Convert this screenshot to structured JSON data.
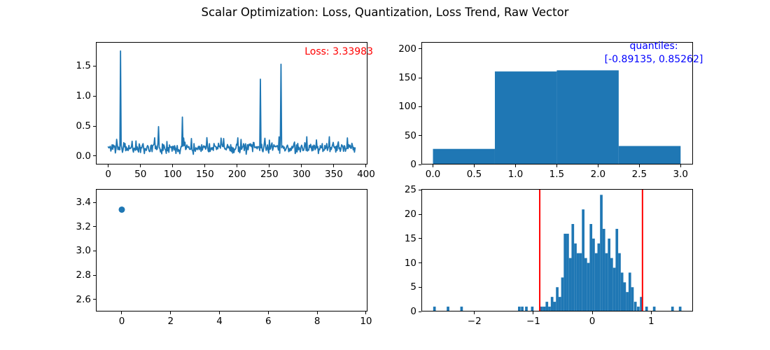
{
  "title": "Scalar Optimization: Loss, Quantization, Loss Trend, Raw Vector",
  "colors": {
    "series": "#1f77b4",
    "annotation_red": "#ff0000",
    "annotation_blue": "#0000ff",
    "vline": "#ff0000",
    "axis": "#000000",
    "background": "#ffffff"
  },
  "chart_data": [
    {
      "id": "loss-curve",
      "type": "line",
      "annotation": "Loss: 3.33983",
      "xlim": [
        -19.2,
        402.2
      ],
      "ylim": [
        -0.14,
        1.9
      ],
      "xticks": [
        [
          0,
          "0"
        ],
        [
          50,
          "50"
        ],
        [
          100,
          "100"
        ],
        [
          150,
          "150"
        ],
        [
          200,
          "200"
        ],
        [
          250,
          "250"
        ],
        [
          300,
          "300"
        ],
        [
          350,
          "350"
        ],
        [
          400,
          "400"
        ]
      ],
      "yticks": [
        [
          0,
          "0.0"
        ],
        [
          0.5,
          "0.5"
        ],
        [
          1.0,
          "1.0"
        ],
        [
          1.5,
          "1.5"
        ]
      ],
      "n_points": 384,
      "baseline": {
        "mean": 0.14,
        "amplitude": 0.13,
        "min": 0.02,
        "max": 0.33,
        "bump_chance": 0.05,
        "bump_base": 0.24,
        "bump_spread": 0.09,
        "seed": 11
      },
      "spikes": [
        [
          19,
          1.75
        ],
        [
          78,
          0.49
        ],
        [
          115,
          0.65
        ],
        [
          236,
          1.28
        ],
        [
          268,
          1.53
        ]
      ],
      "grid": false,
      "legend": null
    },
    {
      "id": "quantization-hist",
      "type": "bar",
      "annotation_lines": [
        "quantiles:",
        "[-0.89135, 0.85262]"
      ],
      "xlim": [
        -0.14,
        3.15
      ],
      "ylim": [
        0,
        212
      ],
      "xticks": [
        [
          0,
          "0.0"
        ],
        [
          0.5,
          "0.5"
        ],
        [
          1.0,
          "1.0"
        ],
        [
          1.5,
          "1.5"
        ],
        [
          2.0,
          "2.0"
        ],
        [
          2.5,
          "2.5"
        ],
        [
          3.0,
          "3.0"
        ]
      ],
      "yticks": [
        [
          0,
          "0"
        ],
        [
          50,
          "50"
        ],
        [
          100,
          "100"
        ],
        [
          150,
          "150"
        ],
        [
          200,
          "200"
        ]
      ],
      "bin_edges": [
        0,
        0.75,
        1.5,
        2.25,
        3.0
      ],
      "counts": [
        27,
        161,
        163,
        32
      ],
      "grid": false,
      "legend": null
    },
    {
      "id": "loss-trend",
      "type": "scatter",
      "xlim": [
        -1.06,
        10.06
      ],
      "ylim": [
        2.5,
        3.51
      ],
      "xticks": [
        [
          0,
          "0"
        ],
        [
          2,
          "2"
        ],
        [
          4,
          "4"
        ],
        [
          6,
          "6"
        ],
        [
          8,
          "8"
        ],
        [
          10,
          "10"
        ]
      ],
      "yticks": [
        [
          2.6,
          "2.6"
        ],
        [
          2.8,
          "2.8"
        ],
        [
          3.0,
          "3.0"
        ],
        [
          3.2,
          "3.2"
        ],
        [
          3.4,
          "3.4"
        ]
      ],
      "points": [
        [
          0,
          3.33983
        ]
      ],
      "grid": false,
      "legend": null
    },
    {
      "id": "raw-vector-hist",
      "type": "bar",
      "xlim": [
        -2.9,
        1.71
      ],
      "ylim": [
        0,
        25.2
      ],
      "xticks": [
        [
          -2,
          "−2"
        ],
        [
          -1,
          "−1"
        ],
        [
          0,
          "0"
        ],
        [
          1,
          "1"
        ]
      ],
      "yticks": [
        [
          0,
          "0"
        ],
        [
          5,
          "5"
        ],
        [
          10,
          "10"
        ],
        [
          15,
          "15"
        ],
        [
          20,
          "20"
        ],
        [
          25,
          "25"
        ]
      ],
      "bin_width": 0.044,
      "bars": [
        [
          -2.7,
          1
        ],
        [
          -2.47,
          1
        ],
        [
          -2.24,
          1
        ],
        [
          -1.26,
          1
        ],
        [
          -1.21,
          1
        ],
        [
          -1.14,
          1
        ],
        [
          -1.04,
          1
        ],
        [
          -0.88,
          1
        ],
        [
          -0.836,
          1
        ],
        [
          -0.792,
          2
        ],
        [
          -0.748,
          1
        ],
        [
          -0.704,
          3
        ],
        [
          -0.66,
          2
        ],
        [
          -0.616,
          5
        ],
        [
          -0.572,
          3
        ],
        [
          -0.528,
          7
        ],
        [
          -0.484,
          16
        ],
        [
          -0.44,
          16
        ],
        [
          -0.396,
          11
        ],
        [
          -0.352,
          18
        ],
        [
          -0.308,
          14
        ],
        [
          -0.264,
          12
        ],
        [
          -0.22,
          12
        ],
        [
          -0.176,
          21
        ],
        [
          -0.132,
          11
        ],
        [
          -0.088,
          10
        ],
        [
          -0.044,
          18
        ],
        [
          0.0,
          15
        ],
        [
          0.044,
          12
        ],
        [
          0.088,
          14
        ],
        [
          0.132,
          24
        ],
        [
          0.176,
          17
        ],
        [
          0.22,
          12
        ],
        [
          0.264,
          15
        ],
        [
          0.308,
          11
        ],
        [
          0.352,
          9
        ],
        [
          0.396,
          17
        ],
        [
          0.44,
          12
        ],
        [
          0.484,
          8
        ],
        [
          0.528,
          6
        ],
        [
          0.572,
          4
        ],
        [
          0.616,
          8
        ],
        [
          0.66,
          5
        ],
        [
          0.71,
          2
        ],
        [
          0.76,
          1
        ],
        [
          0.81,
          3
        ],
        [
          0.9,
          1
        ],
        [
          1.03,
          1
        ],
        [
          1.34,
          1
        ],
        [
          1.47,
          1
        ]
      ],
      "vlines": [
        -0.89135,
        0.85262
      ],
      "grid": false,
      "legend": null
    }
  ]
}
